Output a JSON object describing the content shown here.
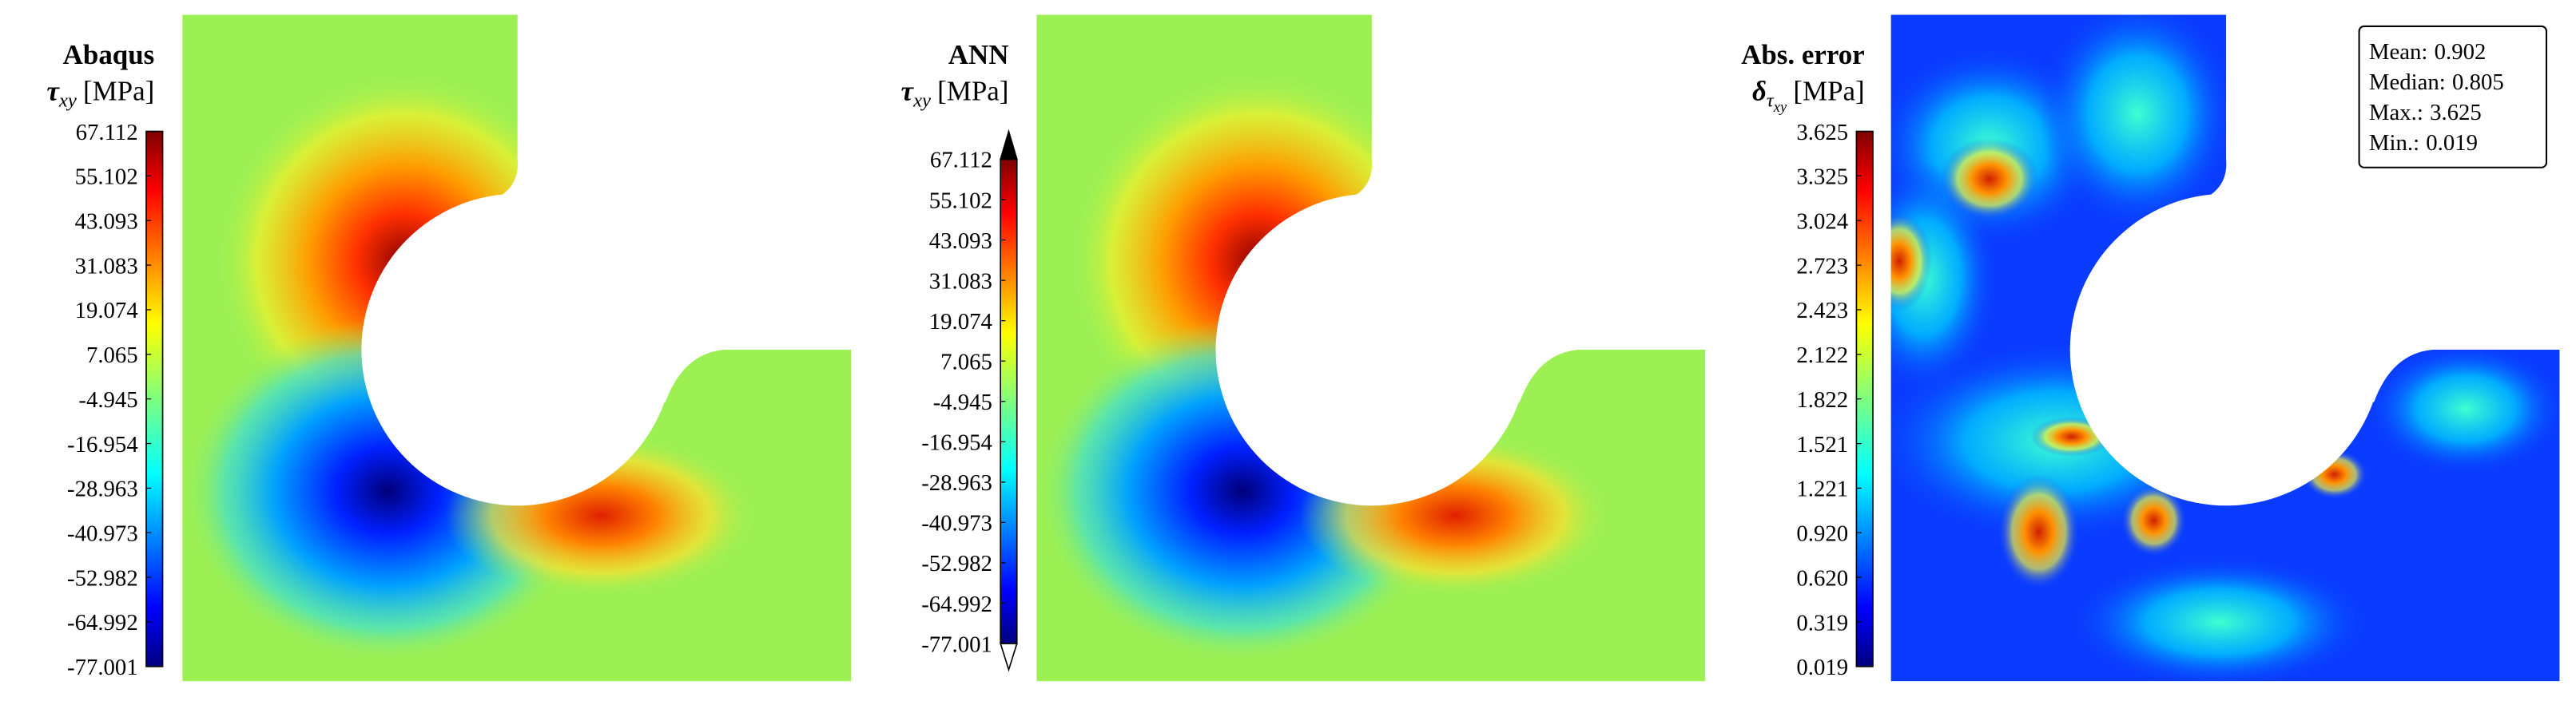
{
  "chart_data": [
    {
      "type": "contour",
      "title": "Abaqus",
      "colorbar_label": {
        "symbol": "τ",
        "subscript": "xy",
        "unit": "[MPa]"
      },
      "ylim": [
        -77.001,
        67.112
      ],
      "yticks": [
        67.112,
        55.102,
        43.093,
        31.083,
        19.074,
        7.065,
        -4.945,
        -16.954,
        -28.963,
        -40.973,
        -52.982,
        -64.992,
        -77.001
      ],
      "colormap": "jet"
    },
    {
      "type": "contour",
      "title": "ANN",
      "colorbar_label": {
        "symbol": "τ",
        "subscript": "xy",
        "unit": "[MPa]"
      },
      "ylim": [
        -77.001,
        67.112
      ],
      "yticks": [
        67.112,
        55.102,
        43.093,
        31.083,
        19.074,
        7.065,
        -4.945,
        -16.954,
        -28.963,
        -40.973,
        -52.982,
        -64.992,
        -77.001
      ],
      "colormap": "jet",
      "extend": "both"
    },
    {
      "type": "contour",
      "title": "Abs. error",
      "colorbar_label": {
        "symbol": "δ",
        "subscript": "τ",
        "subsubscript": "xy",
        "unit": "[MPa]"
      },
      "ylim": [
        0.019,
        3.625
      ],
      "yticks": [
        3.625,
        3.325,
        3.024,
        2.723,
        2.423,
        2.122,
        1.822,
        1.521,
        1.221,
        {
          "value": 0.92,
          "label": "0.920"
        },
        {
          "value": 0.62,
          "label": "0.620"
        },
        0.319,
        0.019
      ],
      "colormap": "jet",
      "stats": [
        {
          "label": "Mean:",
          "value": 0.902
        },
        {
          "label": "Median:",
          "value": 0.805
        },
        {
          "label": "Max.:",
          "value": 3.625
        },
        {
          "label": "Min.:",
          "value": 0.019
        }
      ]
    }
  ]
}
